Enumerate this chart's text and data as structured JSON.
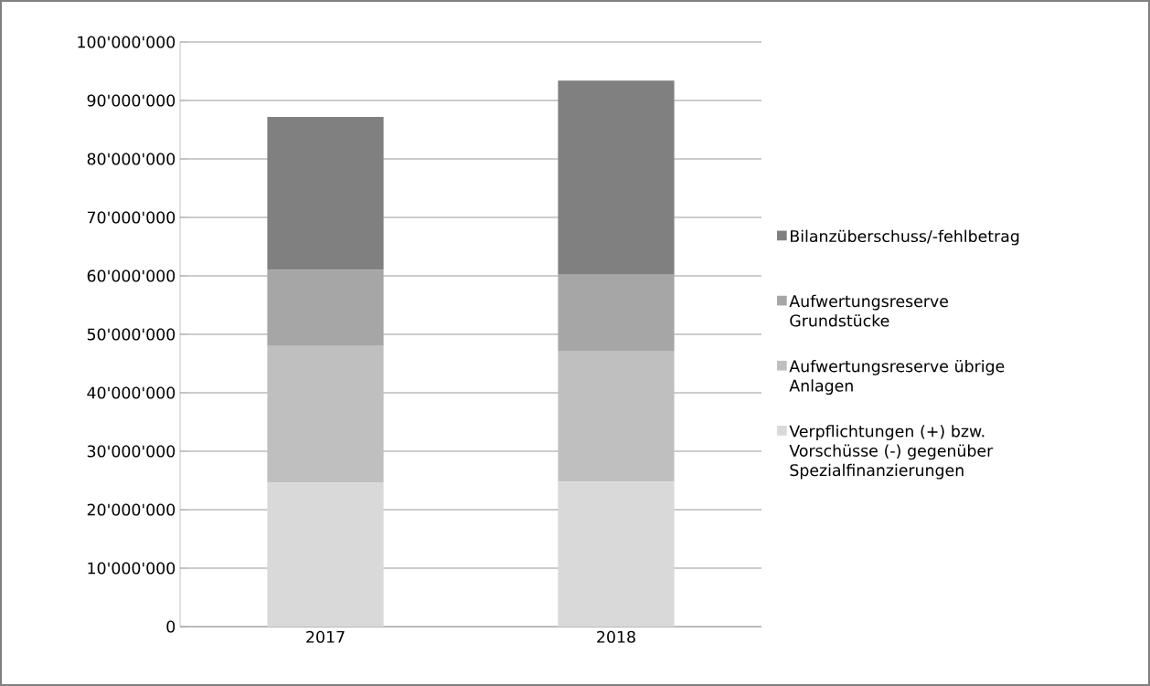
{
  "chart_data": {
    "type": "bar",
    "stacked": true,
    "categories": [
      "2017",
      "2018"
    ],
    "series": [
      {
        "name": "Verpflichtungen (+) bzw. Vorschüsse (-) gegenüber Spezialfinanzierungen",
        "color": "#d9d9d9",
        "values": [
          24600000,
          24800000
        ]
      },
      {
        "name": "Aufwertungsreserve übrige Anlagen",
        "color": "#bfbfbf",
        "values": [
          23400000,
          22400000
        ]
      },
      {
        "name": "Aufwertungsreserve Grundstücke",
        "color": "#a6a6a6",
        "values": [
          13000000,
          13000000
        ]
      },
      {
        "name": "Bilanzüberschuss/-fehlbetrag",
        "color": "#808080",
        "values": [
          26200000,
          33200000
        ]
      }
    ],
    "ylim": [
      0,
      100000000
    ],
    "yticks": [
      0,
      {
        "value": 10000000,
        "label": "10'000'000"
      },
      {
        "value": 20000000,
        "label": "20'000'000"
      },
      {
        "value": 30000000,
        "label": "30'000'000"
      },
      {
        "value": 40000000,
        "label": "40'000'000"
      },
      {
        "value": 50000000,
        "label": "50'000'000"
      },
      {
        "value": 60000000,
        "label": "60'000'000"
      },
      {
        "value": 70000000,
        "label": "70'000'000"
      },
      {
        "value": 80000000,
        "label": "80'000'000"
      },
      {
        "value": 90000000,
        "label": "90'000'000"
      },
      {
        "value": 100000000,
        "label": "100'000'000"
      }
    ],
    "grid": "y",
    "legend": "right"
  }
}
